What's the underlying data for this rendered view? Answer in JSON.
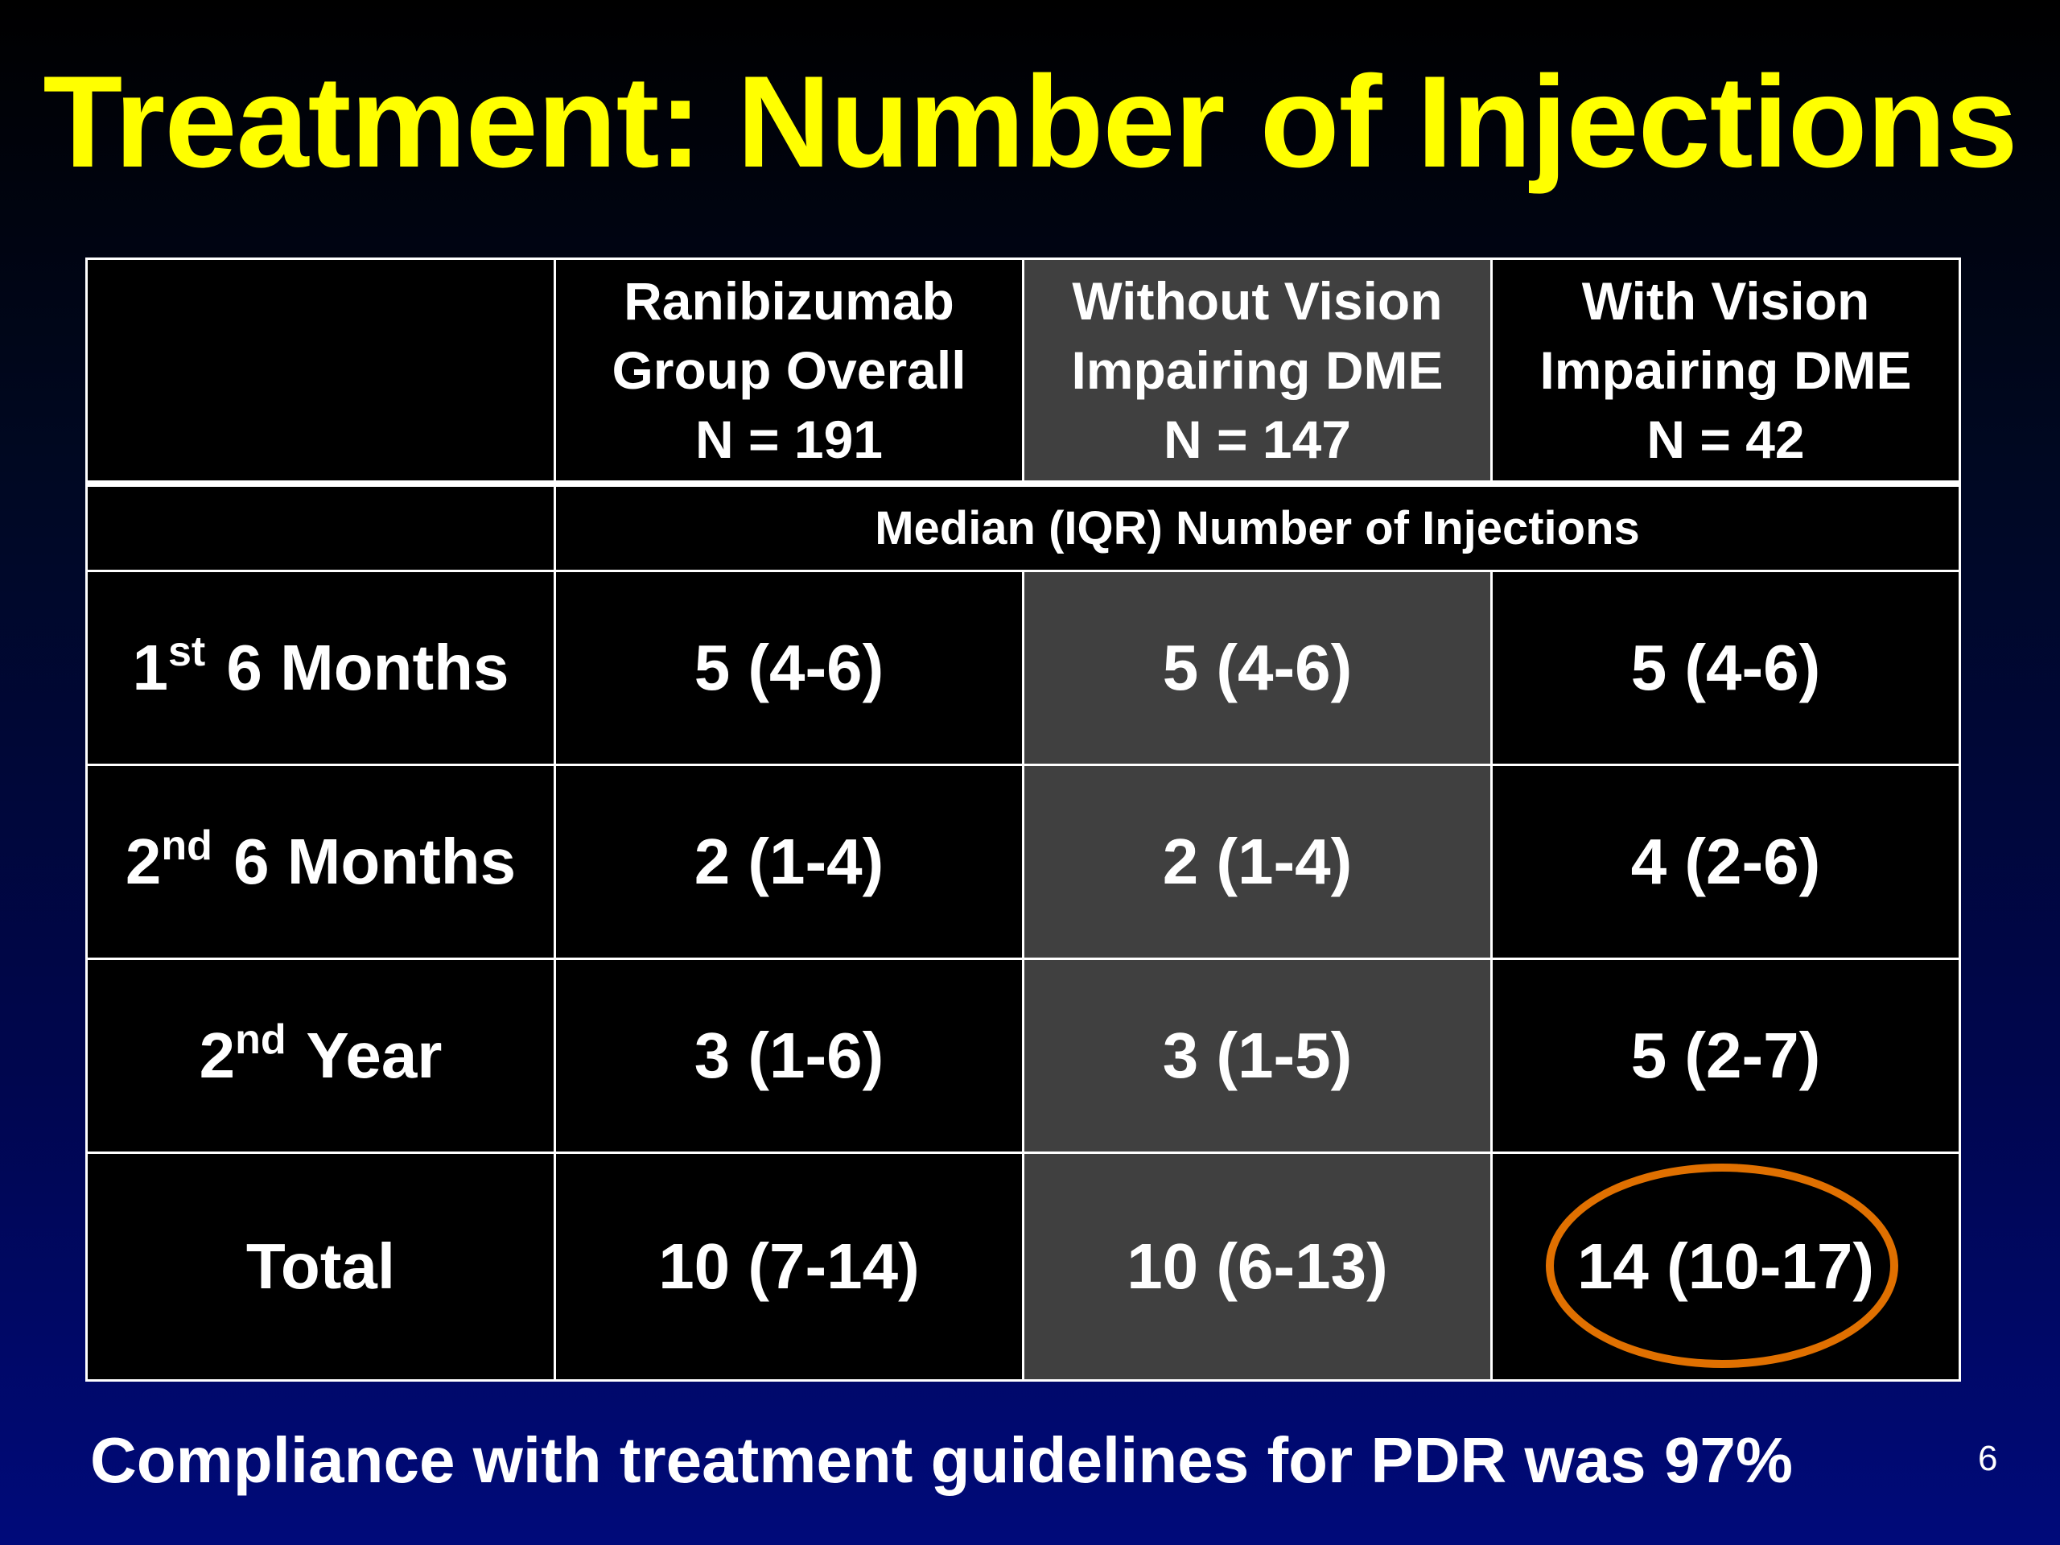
{
  "title": "Treatment: Number of Injections",
  "table": {
    "columns": [
      {
        "line1": "Ranibizumab",
        "line2": "Group Overall",
        "n": "N = 191"
      },
      {
        "line1": "Without Vision",
        "line2": "Impairing DME",
        "n": "N = 147"
      },
      {
        "line1": "With Vision",
        "line2": "Impairing DME",
        "n": "N = 42"
      }
    ],
    "subheader": "Median (IQR) Number of Injections",
    "rows": [
      {
        "label_num": "1",
        "label_sup": "st",
        "label_rest": " 6 Months",
        "values": [
          "5 (4-6)",
          "5 (4-6)",
          "5 (4-6)"
        ]
      },
      {
        "label_num": "2",
        "label_sup": "nd",
        "label_rest": " 6 Months",
        "values": [
          "2 (1-4)",
          "2 (1-4)",
          "4 (2-6)"
        ]
      },
      {
        "label_num": "2",
        "label_sup": "nd",
        "label_rest": " Year",
        "values": [
          "3 (1-6)",
          "3 (1-5)",
          "5 (2-7)"
        ]
      },
      {
        "label": "Total",
        "values": [
          "10 (7-14)",
          "10 (6-13)",
          "14 (10-17)"
        ]
      }
    ],
    "highlight_color": "#e07000"
  },
  "footer": "Compliance with treatment guidelines for PDR was 97%",
  "page_number": "6"
}
